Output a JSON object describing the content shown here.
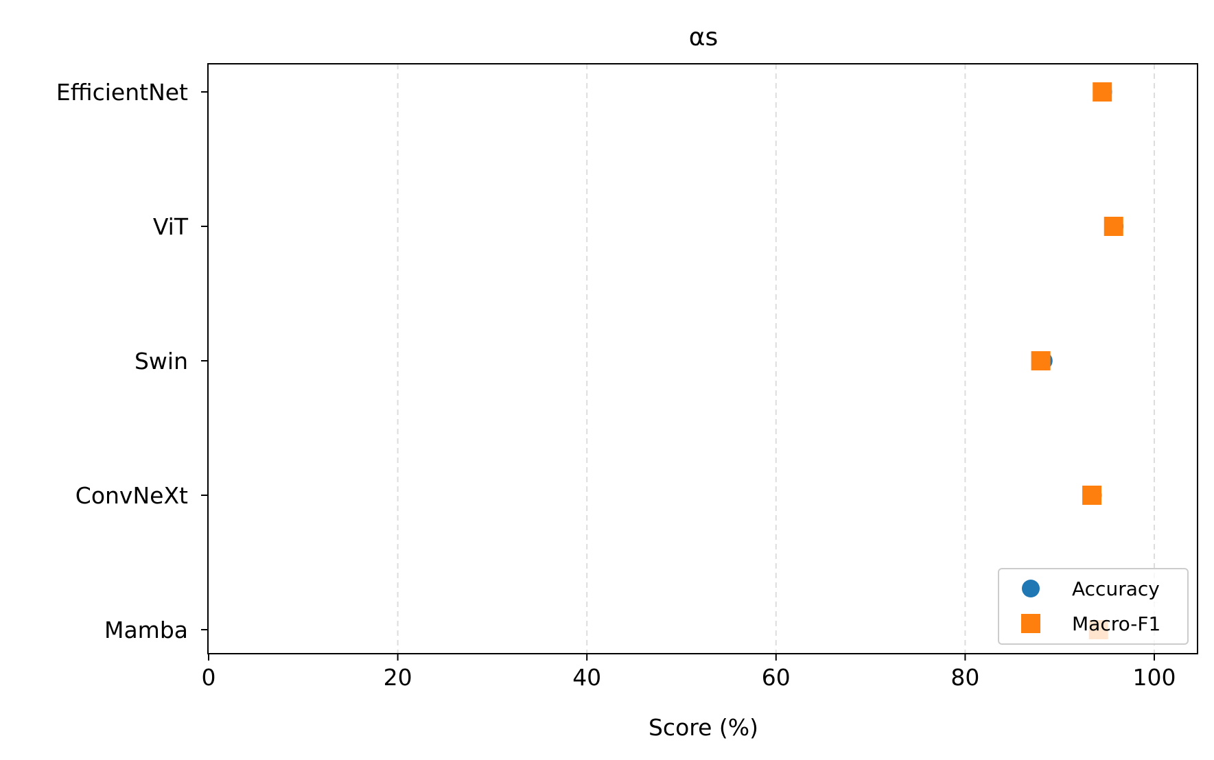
{
  "chart_data": {
    "type": "scatter",
    "title": "αs",
    "xlabel": "Score (%)",
    "ylabel": "",
    "xlim": [
      0,
      105
    ],
    "x_ticks": [
      0,
      20,
      40,
      60,
      80,
      100
    ],
    "categories": [
      "EfficientNet",
      "ViT",
      "Swin",
      "ConvNeXt",
      "Mamba"
    ],
    "series": [
      {
        "name": "Accuracy",
        "marker": "circle",
        "color": "#1f77b4",
        "values": [
          94.6,
          95.8,
          88.3,
          93.5,
          94.2
        ]
      },
      {
        "name": "Macro-F1",
        "marker": "square",
        "color": "#ff7f0e",
        "values": [
          94.5,
          95.7,
          88.0,
          93.4,
          94.1
        ]
      }
    ],
    "grid": {
      "x": true,
      "y": false,
      "style": "dashed"
    },
    "legend": {
      "position": "lower right"
    }
  }
}
